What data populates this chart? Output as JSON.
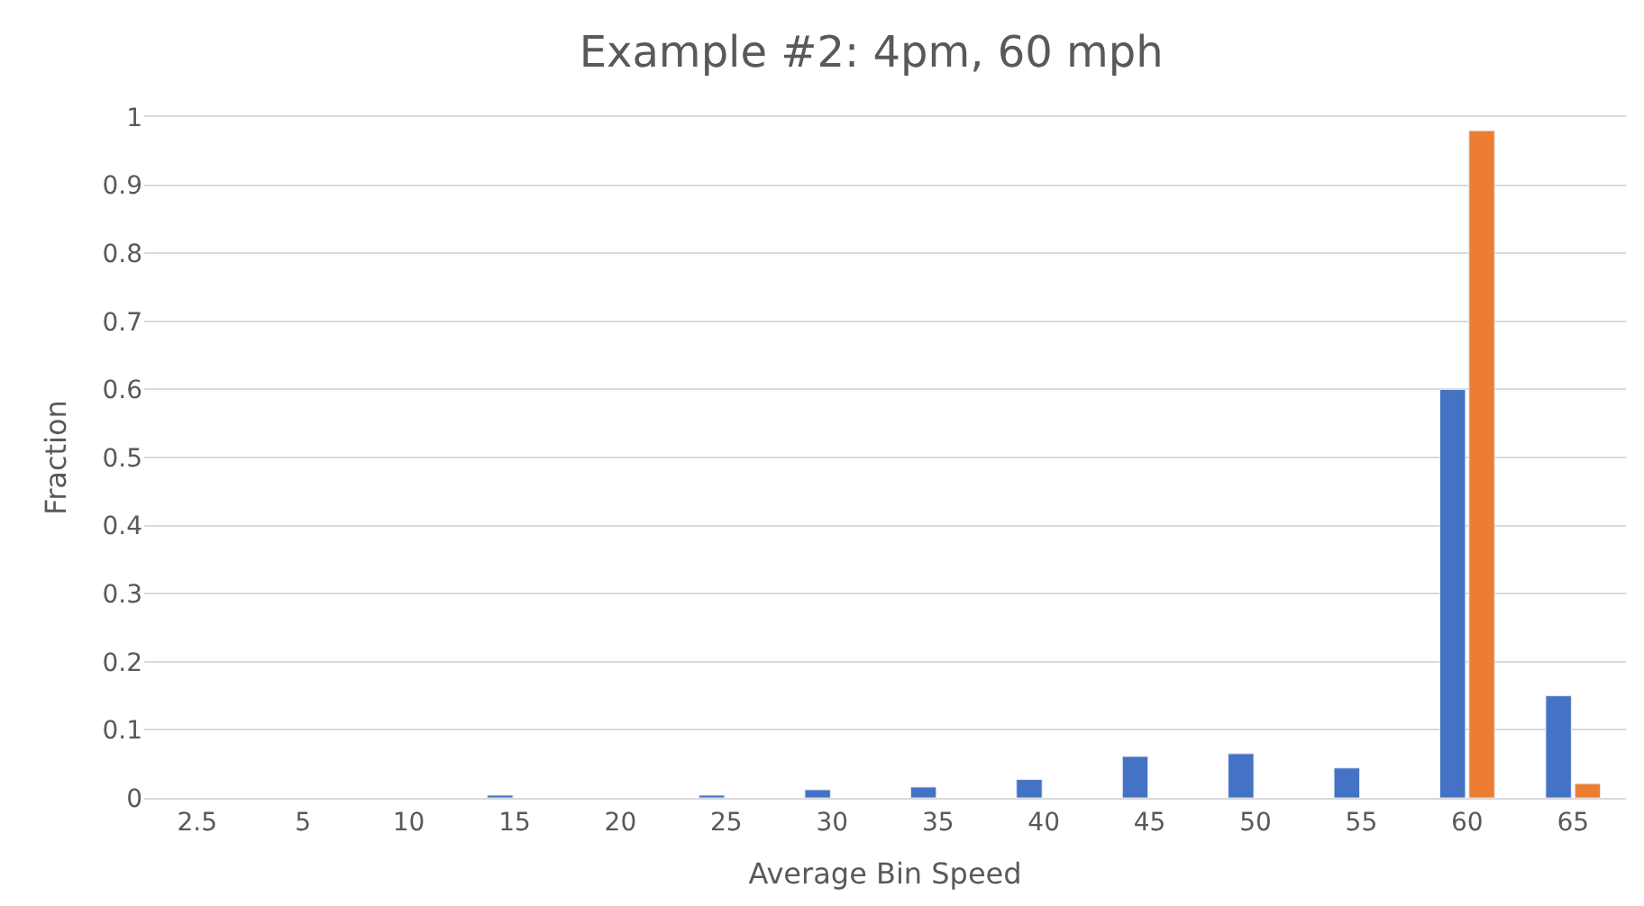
{
  "chart_data": {
    "type": "bar",
    "title": "Example #2: 4pm, 60 mph",
    "xlabel": "Average Bin Speed",
    "ylabel": "Fraction",
    "categories": [
      "2.5",
      "5",
      "10",
      "15",
      "20",
      "25",
      "30",
      "35",
      "40",
      "45",
      "50",
      "55",
      "60",
      "65"
    ],
    "series": [
      {
        "color": "#4472c4",
        "values": [
          null,
          null,
          null,
          0.004,
          null,
          0.004,
          0.012,
          0.016,
          0.027,
          0.061,
          0.065,
          0.044,
          0.6,
          0.15
        ]
      },
      {
        "color": "#ed7d31",
        "values": [
          null,
          null,
          null,
          null,
          null,
          null,
          null,
          null,
          null,
          null,
          null,
          null,
          0.98,
          0.021
        ]
      }
    ],
    "ylim": [
      0,
      1
    ],
    "yticks": [
      0,
      0.1,
      0.2,
      0.3,
      0.4,
      0.5,
      0.6,
      0.7,
      0.8,
      0.9,
      1
    ],
    "grid": "y"
  }
}
